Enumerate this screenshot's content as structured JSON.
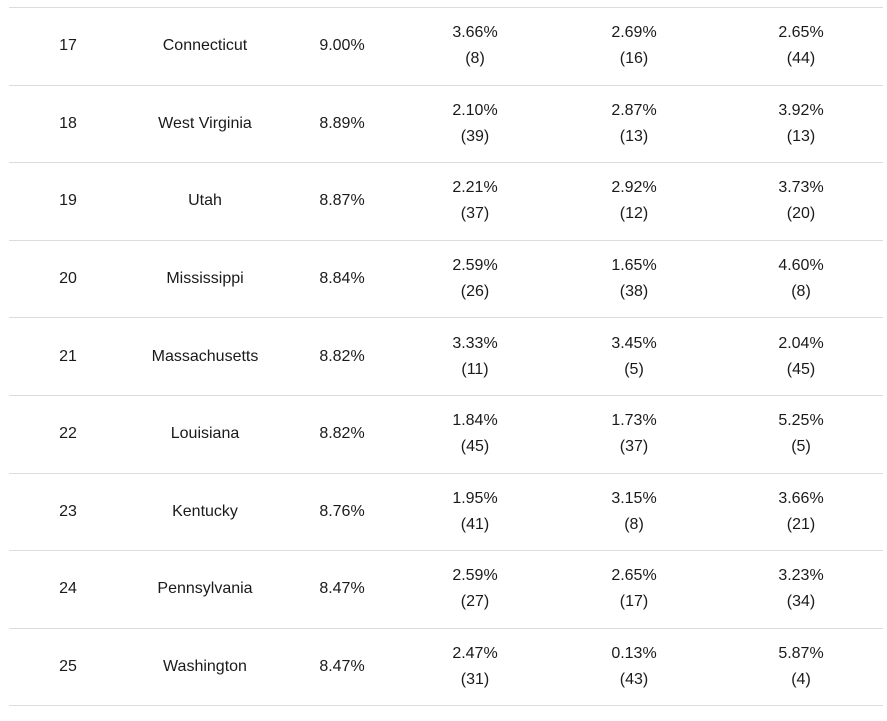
{
  "rows": [
    {
      "rank": "17",
      "state": "Connecticut",
      "total": "9.00%",
      "m1": "3.66%",
      "m1_rank": "(8)",
      "m2": "2.69%",
      "m2_rank": "(16)",
      "m3": "2.65%",
      "m3_rank": "(44)"
    },
    {
      "rank": "18",
      "state": "West Virginia",
      "total": "8.89%",
      "m1": "2.10%",
      "m1_rank": "(39)",
      "m2": "2.87%",
      "m2_rank": "(13)",
      "m3": "3.92%",
      "m3_rank": "(13)"
    },
    {
      "rank": "19",
      "state": "Utah",
      "total": "8.87%",
      "m1": "2.21%",
      "m1_rank": "(37)",
      "m2": "2.92%",
      "m2_rank": "(12)",
      "m3": "3.73%",
      "m3_rank": "(20)"
    },
    {
      "rank": "20",
      "state": "Mississippi",
      "total": "8.84%",
      "m1": "2.59%",
      "m1_rank": "(26)",
      "m2": "1.65%",
      "m2_rank": "(38)",
      "m3": "4.60%",
      "m3_rank": "(8)"
    },
    {
      "rank": "21",
      "state": "Massachusetts",
      "total": "8.82%",
      "m1": "3.33%",
      "m1_rank": "(11)",
      "m2": "3.45%",
      "m2_rank": "(5)",
      "m3": "2.04%",
      "m3_rank": "(45)"
    },
    {
      "rank": "22",
      "state": "Louisiana",
      "total": "8.82%",
      "m1": "1.84%",
      "m1_rank": "(45)",
      "m2": "1.73%",
      "m2_rank": "(37)",
      "m3": "5.25%",
      "m3_rank": "(5)"
    },
    {
      "rank": "23",
      "state": "Kentucky",
      "total": "8.76%",
      "m1": "1.95%",
      "m1_rank": "(41)",
      "m2": "3.15%",
      "m2_rank": "(8)",
      "m3": "3.66%",
      "m3_rank": "(21)"
    },
    {
      "rank": "24",
      "state": "Pennsylvania",
      "total": "8.47%",
      "m1": "2.59%",
      "m1_rank": "(27)",
      "m2": "2.65%",
      "m2_rank": "(17)",
      "m3": "3.23%",
      "m3_rank": "(34)"
    },
    {
      "rank": "25",
      "state": "Washington",
      "total": "8.47%",
      "m1": "2.47%",
      "m1_rank": "(31)",
      "m2": "0.13%",
      "m2_rank": "(43)",
      "m3": "5.87%",
      "m3_rank": "(4)"
    }
  ]
}
